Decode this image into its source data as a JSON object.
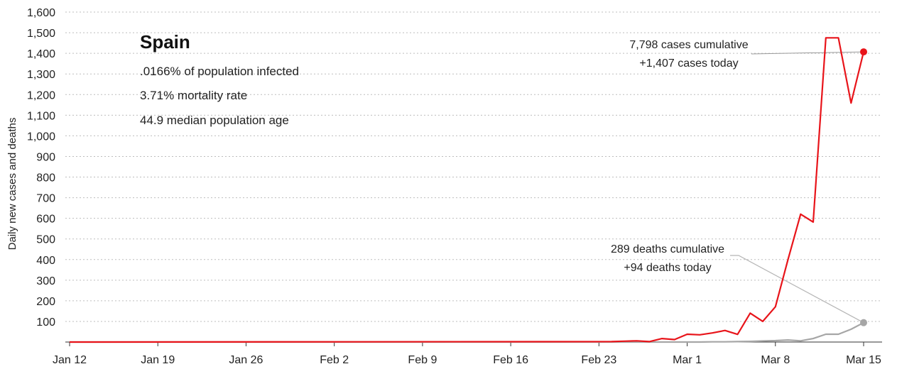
{
  "chart_data": {
    "type": "line",
    "ylabel": "Daily new cases and deaths",
    "ylim": [
      0,
      1600
    ],
    "yticks": [
      100,
      200,
      300,
      400,
      500,
      600,
      700,
      800,
      900,
      1000,
      1100,
      1200,
      1300,
      1400,
      1500,
      1600
    ],
    "ytick_labels": [
      "100",
      "200",
      "300",
      "400",
      "500",
      "600",
      "700",
      "800",
      "900",
      "1,000",
      "1,100",
      "1,200",
      "1,300",
      "1,400",
      "1,500",
      "1,600"
    ],
    "x_start": "2020-01-12",
    "x_end": "2020-03-15",
    "xticks": [
      "2020-01-12",
      "2020-01-19",
      "2020-01-26",
      "2020-02-02",
      "2020-02-09",
      "2020-02-16",
      "2020-02-23",
      "2020-03-01",
      "2020-03-08",
      "2020-03-15"
    ],
    "xtick_labels": [
      "Jan 12",
      "Jan 19",
      "Jan 26",
      "Feb 2",
      "Feb 9",
      "Feb 16",
      "Feb 23",
      "Mar 1",
      "Mar 8",
      "Mar 15"
    ],
    "grid": true,
    "series": [
      {
        "name": "cases",
        "color": "#e8141a",
        "x": [
          "2020-02-24",
          "2020-02-25",
          "2020-02-26",
          "2020-02-27",
          "2020-02-28",
          "2020-02-29",
          "2020-03-01",
          "2020-03-02",
          "2020-03-03",
          "2020-03-04",
          "2020-03-05",
          "2020-03-06",
          "2020-03-07",
          "2020-03-08",
          "2020-03-09",
          "2020-03-10",
          "2020-03-11",
          "2020-03-12",
          "2020-03-13",
          "2020-03-14",
          "2020-03-15"
        ],
        "values": [
          2,
          4,
          6,
          2,
          17,
          12,
          38,
          35,
          44,
          56,
          37,
          140,
          100,
          171,
          400,
          620,
          582,
          1475,
          1475,
          1159,
          1407
        ]
      },
      {
        "name": "deaths",
        "color": "#a6a6a6",
        "x": [
          "2020-03-01",
          "2020-03-02",
          "2020-03-03",
          "2020-03-04",
          "2020-03-05",
          "2020-03-06",
          "2020-03-07",
          "2020-03-08",
          "2020-03-09",
          "2020-03-10",
          "2020-03-11",
          "2020-03-12",
          "2020-03-13",
          "2020-03-14",
          "2020-03-15"
        ],
        "values": [
          0,
          0,
          1,
          1,
          2,
          3,
          5,
          7,
          10,
          6,
          17,
          38,
          38,
          62,
          94
        ]
      }
    ],
    "title": "Spain",
    "stats": [
      ".0166% of population infected",
      "3.71% mortality rate",
      "44.9 median population age"
    ],
    "annotations": [
      {
        "series": "cases",
        "line1": "7,798 cases cumulative",
        "line2": "+1,407 cases today"
      },
      {
        "series": "deaths",
        "line1": "289 deaths cumulative",
        "line2": "+94 deaths today"
      }
    ]
  }
}
